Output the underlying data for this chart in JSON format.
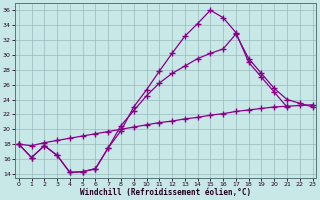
{
  "bg_color": "#c8e8e8",
  "grid_color": "#99bbbb",
  "line_color": "#880088",
  "xlabel": "Windchill (Refroidissement éolien,°C)",
  "xlim": [
    -0.3,
    23.3
  ],
  "ylim": [
    13.5,
    37.0
  ],
  "xticks": [
    0,
    1,
    2,
    3,
    4,
    5,
    6,
    7,
    8,
    9,
    10,
    11,
    12,
    13,
    14,
    15,
    16,
    17,
    18,
    19,
    20,
    21,
    22,
    23
  ],
  "yticks": [
    14,
    16,
    18,
    20,
    22,
    24,
    26,
    28,
    30,
    32,
    34,
    36
  ],
  "top_x": [
    0,
    1,
    2,
    3,
    4,
    5,
    6,
    7,
    8,
    9,
    10,
    11,
    12,
    13,
    14,
    15,
    16,
    17,
    18,
    19,
    20,
    21
  ],
  "top_y": [
    18.0,
    16.2,
    17.8,
    16.5,
    14.2,
    14.3,
    14.7,
    17.5,
    19.8,
    23.0,
    25.3,
    27.8,
    30.2,
    32.5,
    34.2,
    36.0,
    35.0,
    33.0,
    29.0,
    27.0,
    25.0,
    23.0
  ],
  "mid_x": [
    0,
    1,
    2,
    3,
    4,
    5,
    6,
    7,
    8,
    9,
    10,
    11,
    12,
    13,
    14,
    15,
    16,
    17,
    18,
    19,
    20,
    21,
    22,
    23
  ],
  "mid_y": [
    18.0,
    16.2,
    17.8,
    16.5,
    14.2,
    14.3,
    14.7,
    17.5,
    20.5,
    22.5,
    24.5,
    26.2,
    27.5,
    28.5,
    29.5,
    30.2,
    30.8,
    32.8,
    29.5,
    27.5,
    25.5,
    24.0,
    23.5,
    23.0
  ],
  "low_x": [
    0,
    1,
    2,
    3,
    4,
    5,
    6,
    7,
    8,
    9,
    10,
    11,
    12,
    13,
    14,
    15,
    16,
    17,
    18,
    19,
    20,
    21,
    22,
    23
  ],
  "low_y": [
    18.0,
    17.8,
    18.2,
    18.5,
    18.8,
    19.1,
    19.4,
    19.7,
    20.0,
    20.3,
    20.6,
    20.9,
    21.1,
    21.4,
    21.6,
    21.9,
    22.1,
    22.4,
    22.6,
    22.8,
    23.0,
    23.1,
    23.2,
    23.3
  ]
}
